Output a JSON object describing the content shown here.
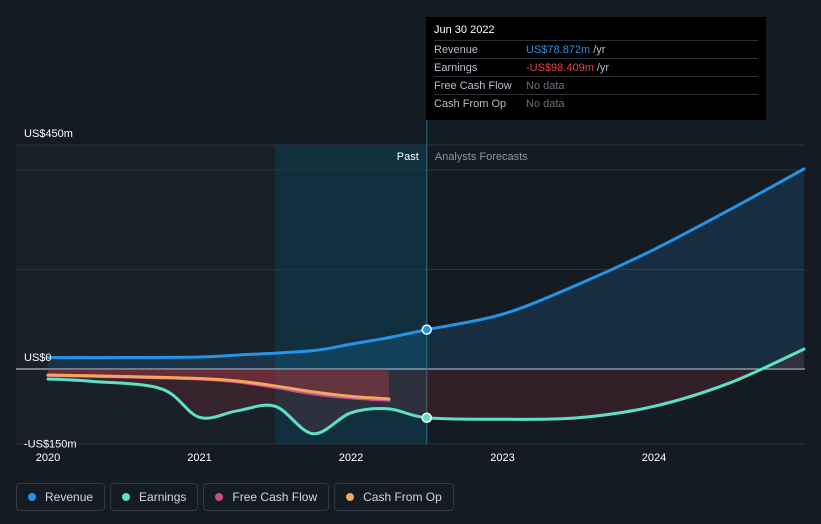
{
  "tooltip": {
    "date": "Jun 30 2022",
    "rows": [
      {
        "label": "Revenue",
        "value": "US$78.872m",
        "unit": "/yr",
        "color": "#2f8fde"
      },
      {
        "label": "Earnings",
        "value": "-US$98.409m",
        "unit": "/yr",
        "color": "#e8424b"
      },
      {
        "label": "Free Cash Flow",
        "value": "No data",
        "unit": "",
        "color": "#6b7078"
      },
      {
        "label": "Cash From Op",
        "value": "No data",
        "unit": "",
        "color": "#6b7078"
      }
    ]
  },
  "legend": [
    {
      "label": "Revenue",
      "color": "#2394e8"
    },
    {
      "label": "Earnings",
      "color": "#5ee0c6"
    },
    {
      "label": "Free Cash Flow",
      "color": "#c74b8e"
    },
    {
      "label": "Cash From Op",
      "color": "#f0a860"
    }
  ],
  "chart_data": {
    "type": "line",
    "y_axis_labels": [
      "US$450m",
      "US$0",
      "-US$150m"
    ],
    "x_tick_labels": [
      "2020",
      "2021",
      "2022",
      "2023",
      "2024"
    ],
    "ylim": [
      -150,
      450
    ],
    "xlim": [
      2020.0,
      2024.99
    ],
    "past_label": "Past",
    "forecast_label": "Analysts Forecasts",
    "highlight_start": 2021.5,
    "past_end": 2022.5,
    "series": [
      {
        "name": "Revenue",
        "color": "#2394e8",
        "x": [
          2020.0,
          2020.5,
          2021.0,
          2021.25,
          2021.75,
          2022.0,
          2022.25,
          2022.5,
          2023.0,
          2023.5,
          2024.0,
          2024.5,
          2024.99
        ],
        "y": [
          23,
          23,
          24,
          28,
          37,
          50,
          63,
          79,
          110,
          170,
          240,
          320,
          402
        ]
      },
      {
        "name": "Earnings",
        "color": "#5ee0c6",
        "x": [
          2020.0,
          2020.3,
          2020.75,
          2021.0,
          2021.25,
          2021.5,
          2021.75,
          2022.0,
          2022.25,
          2022.5,
          2023.0,
          2023.5,
          2024.0,
          2024.5,
          2024.99
        ],
        "y": [
          -20,
          -25,
          -40,
          -97,
          -84,
          -75,
          -130,
          -88,
          -80,
          -98,
          -101,
          -98,
          -75,
          -28,
          40
        ]
      },
      {
        "name": "Free Cash Flow",
        "color": "#c74b8e",
        "x": [
          2020.0,
          2020.5,
          2021.0,
          2021.25,
          2021.5,
          2021.75,
          2022.0,
          2022.25
        ],
        "y": [
          -13,
          -16,
          -20,
          -26,
          -37,
          -50,
          -58,
          -63
        ]
      },
      {
        "name": "Cash From Op",
        "color": "#f0a860",
        "x": [
          2020.0,
          2020.5,
          2021.0,
          2021.25,
          2021.5,
          2021.75,
          2022.0,
          2022.25
        ],
        "y": [
          -12,
          -15,
          -19,
          -24,
          -34,
          -46,
          -55,
          -60
        ]
      }
    ],
    "markers": [
      {
        "series": "Revenue",
        "x": 2022.5,
        "y": 79
      },
      {
        "series": "Earnings",
        "x": 2022.5,
        "y": -98
      }
    ]
  }
}
